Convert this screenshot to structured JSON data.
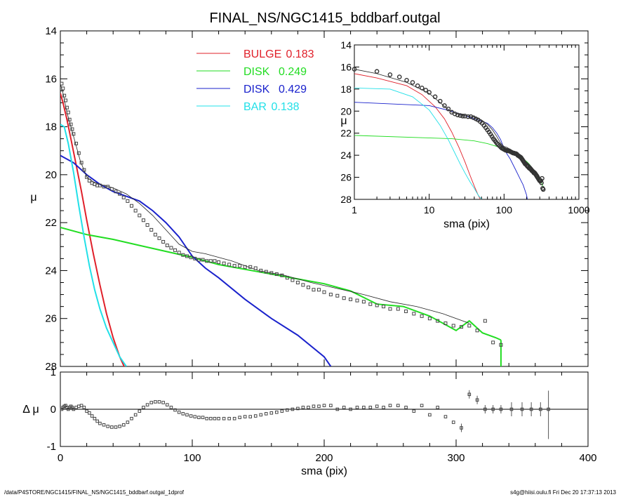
{
  "chart_data": {
    "title": "FINAL_NS/NGC1415_bddbarf.outgal",
    "type": "line",
    "main": {
      "xlim": [
        0,
        400
      ],
      "ylim": [
        28,
        14
      ],
      "ylabel": "μ",
      "xticks": [
        0,
        100,
        200,
        300,
        400
      ],
      "yticks": [
        14,
        16,
        18,
        20,
        22,
        24,
        26,
        28
      ]
    },
    "residual": {
      "ylim": [
        -1,
        1
      ],
      "ylabel": "Δ μ",
      "xlabel": "sma (pix)",
      "yticks": [
        1,
        0,
        -1
      ]
    },
    "legend": [
      {
        "name": "BULGE",
        "value": "0.183",
        "color": "#e0202a"
      },
      {
        "name": "DISK",
        "value": "0.249",
        "color": "#22dd22"
      },
      {
        "name": "DISK",
        "value": "0.429",
        "color": "#1a22cc"
      },
      {
        "name": "BAR",
        "value": "0.138",
        "color": "#22e0e8"
      }
    ],
    "series": [
      {
        "name": "BULGE",
        "color": "#e0202a",
        "x": [
          0,
          2,
          5,
          8,
          12,
          16,
          20,
          25,
          30,
          35,
          40,
          45,
          50
        ],
        "y": [
          16.6,
          17.0,
          17.7,
          18.5,
          19.6,
          20.7,
          21.9,
          23.3,
          24.6,
          25.8,
          26.8,
          27.6,
          28.2
        ]
      },
      {
        "name": "DISK",
        "color": "#22dd22",
        "x": [
          0,
          20,
          40,
          60,
          80,
          100,
          120,
          140,
          160,
          180,
          200,
          220,
          240,
          260,
          280,
          290,
          300,
          310,
          320,
          330,
          334
        ],
        "y": [
          22.2,
          22.5,
          22.7,
          22.95,
          23.2,
          23.45,
          23.75,
          23.95,
          24.15,
          24.35,
          24.55,
          24.85,
          25.4,
          25.5,
          25.9,
          26.2,
          26.5,
          26.1,
          26.6,
          26.8,
          26.9
        ]
      },
      {
        "name": "DISK",
        "color": "#1a22cc",
        "x": [
          0,
          10,
          20,
          30,
          40,
          50,
          60,
          70,
          80,
          90,
          100,
          110,
          120,
          140,
          160,
          180,
          200,
          205
        ],
        "y": [
          19.2,
          19.5,
          20.0,
          20.4,
          20.7,
          20.9,
          21.1,
          21.5,
          22.0,
          22.6,
          23.4,
          23.9,
          24.3,
          25.2,
          26.0,
          26.7,
          27.6,
          28.0
        ]
      },
      {
        "name": "BAR",
        "color": "#22e0e8",
        "x": [
          0,
          3,
          6,
          10,
          14,
          18,
          22,
          26,
          30,
          35,
          40,
          45,
          50
        ],
        "y": [
          17.9,
          18.0,
          18.7,
          19.9,
          21.3,
          22.6,
          23.8,
          24.8,
          25.6,
          26.4,
          27.0,
          27.6,
          28.0
        ]
      },
      {
        "name": "",
        "color": "#222222",
        "x": [
          0,
          2,
          5,
          10,
          15,
          20,
          25,
          30,
          40,
          50,
          60,
          70,
          80,
          90,
          100,
          110,
          130,
          150,
          170,
          190,
          210,
          230,
          250,
          270,
          290,
          310
        ],
        "y": [
          16.2,
          16.6,
          17.4,
          18.4,
          19.4,
          20.1,
          20.3,
          20.4,
          20.55,
          20.8,
          21.2,
          21.7,
          22.3,
          22.9,
          23.2,
          23.3,
          23.6,
          24.0,
          24.2,
          24.5,
          24.75,
          25.0,
          25.3,
          25.5,
          25.8,
          26.2
        ]
      }
    ],
    "observed": {
      "x": [
        1,
        2,
        3,
        4,
        5,
        6,
        7,
        8,
        9,
        10,
        12,
        14,
        16,
        18,
        20,
        22,
        24,
        26,
        28,
        30,
        33,
        36,
        39,
        42,
        45,
        48,
        51,
        54,
        57,
        60,
        63,
        66,
        69,
        72,
        75,
        78,
        81,
        84,
        87,
        90,
        93,
        96,
        99,
        102,
        105,
        108,
        111,
        114,
        117,
        120,
        124,
        128,
        132,
        136,
        140,
        144,
        148,
        152,
        156,
        160,
        164,
        168,
        172,
        176,
        180,
        184,
        188,
        192,
        196,
        200,
        205,
        210,
        215,
        220,
        225,
        230,
        235,
        240,
        245,
        250,
        256,
        262,
        268,
        274,
        280,
        286,
        292,
        298,
        304,
        310,
        316,
        322,
        328,
        334
      ],
      "y": [
        16.2,
        16.4,
        16.7,
        16.9,
        17.2,
        17.4,
        17.7,
        17.9,
        18.1,
        18.3,
        18.7,
        19.1,
        19.5,
        19.8,
        20.1,
        20.25,
        20.35,
        20.4,
        20.45,
        20.45,
        20.5,
        20.5,
        20.6,
        20.7,
        20.8,
        20.95,
        21.1,
        21.3,
        21.5,
        21.7,
        21.9,
        22.1,
        22.3,
        22.5,
        22.65,
        22.8,
        22.95,
        23.05,
        23.15,
        23.25,
        23.35,
        23.4,
        23.45,
        23.5,
        23.55,
        23.55,
        23.6,
        23.6,
        23.6,
        23.65,
        23.7,
        23.75,
        23.8,
        23.8,
        23.85,
        23.85,
        23.9,
        24.0,
        24.05,
        24.1,
        24.15,
        24.2,
        24.3,
        24.4,
        24.5,
        24.6,
        24.7,
        24.8,
        24.8,
        24.9,
        25.0,
        25.05,
        25.15,
        25.2,
        25.25,
        25.3,
        25.4,
        25.45,
        25.5,
        25.6,
        25.6,
        25.7,
        25.8,
        25.9,
        26.0,
        26.1,
        26.2,
        26.3,
        26.35,
        26.3,
        26.5,
        26.1,
        27.0,
        27.1
      ],
      "residual": [
        0.0,
        0.05,
        0.08,
        0.1,
        0.05,
        0.0,
        0.05,
        0.08,
        0.05,
        0.0,
        0.05,
        0.08,
        0.1,
        0.05,
        -0.05,
        -0.1,
        -0.18,
        -0.25,
        -0.32,
        -0.38,
        -0.42,
        -0.46,
        -0.48,
        -0.48,
        -0.46,
        -0.42,
        -0.35,
        -0.25,
        -0.15,
        -0.05,
        0.05,
        0.12,
        0.18,
        0.2,
        0.2,
        0.18,
        0.12,
        0.05,
        -0.02,
        -0.08,
        -0.12,
        -0.15,
        -0.18,
        -0.2,
        -0.22,
        -0.22,
        -0.25,
        -0.25,
        -0.25,
        -0.25,
        -0.25,
        -0.25,
        -0.25,
        -0.22,
        -0.2,
        -0.2,
        -0.18,
        -0.15,
        -0.12,
        -0.1,
        -0.08,
        -0.05,
        -0.02,
        0.0,
        0.02,
        0.05,
        0.05,
        0.08,
        0.08,
        0.1,
        0.1,
        0.0,
        0.05,
        0.0,
        0.05,
        0.05,
        0.05,
        0.08,
        0.05,
        0.1,
        0.1,
        0.05,
        -0.05,
        0.1,
        -0.15,
        0.05,
        -0.2,
        -0.35,
        -0.5,
        0.4,
        0.25,
        0.0,
        0.0,
        0.0
      ]
    },
    "inset": {
      "xscale": "log",
      "xlim": [
        1,
        1000
      ],
      "ylim": [
        28,
        14
      ],
      "xlabel": "sma (pix)",
      "ylabel": "μ",
      "xticks": [
        1,
        10,
        100,
        1000
      ],
      "yticks": [
        14,
        16,
        18,
        20,
        22,
        24,
        26,
        28
      ]
    }
  },
  "footer": {
    "left": "/data/P4STORE/NGC1415/FINAL_NS/NGC1415_bddbarf.outgal_1dprof",
    "right": "s4g@hiisi.oulu.fi  Fri Dec 20 17:37:13 2013"
  }
}
